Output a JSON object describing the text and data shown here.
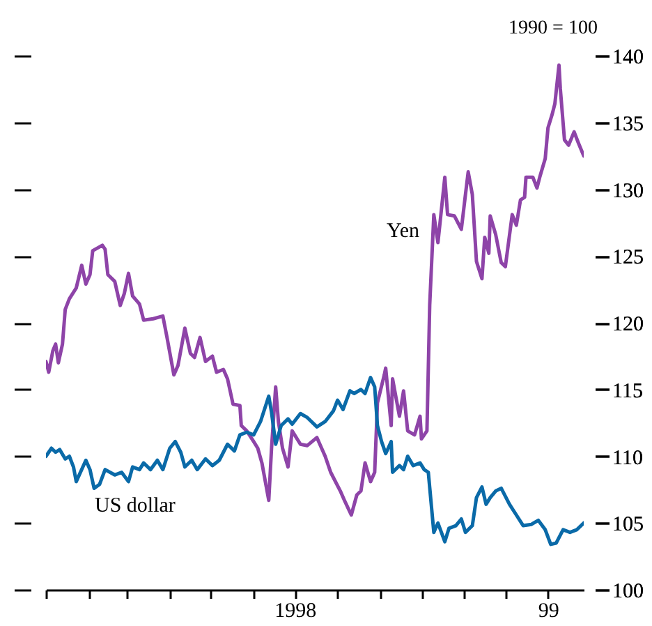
{
  "chart_data": {
    "type": "line",
    "annotations": [
      "1990 = 100"
    ],
    "legend": false,
    "grid": false,
    "xlim": [
      "1998-01-01",
      "1999-01-27"
    ],
    "xticks": [
      {
        "value": "1998-01-01",
        "label": null
      },
      {
        "value": "1998-02-01",
        "label": null
      },
      {
        "value": "1998-03-01",
        "label": null
      },
      {
        "value": "1998-04-01",
        "label": null
      },
      {
        "value": "1998-05-01",
        "label": null
      },
      {
        "value": "1998-06-01",
        "label": null
      },
      {
        "value": "1998-07-01",
        "label": "1998"
      },
      {
        "value": "1998-08-01",
        "label": null
      },
      {
        "value": "1998-09-01",
        "label": null
      },
      {
        "value": "1998-10-01",
        "label": null
      },
      {
        "value": "1998-11-01",
        "label": null
      },
      {
        "value": "1998-12-01",
        "label": null
      },
      {
        "value": "1999-01-01",
        "label": "99"
      }
    ],
    "y2lim": [
      100,
      140
    ],
    "y2ticks": [
      100,
      105,
      110,
      115,
      120,
      125,
      130,
      135,
      140
    ],
    "series": [
      {
        "name": "Yen",
        "color": "#8e44a8",
        "axis": "y2",
        "x": [
          "1998-01-01",
          "1998-01-03",
          "1998-01-06",
          "1998-01-08",
          "1998-01-10",
          "1998-01-13",
          "1998-01-15",
          "1998-01-18",
          "1998-01-23",
          "1998-01-27",
          "1998-01-30",
          "1998-02-02",
          "1998-02-04",
          "1998-02-11",
          "1998-02-13",
          "1998-02-15",
          "1998-02-20",
          "1998-02-24",
          "1998-02-27",
          "1998-03-02",
          "1998-03-05",
          "1998-03-10",
          "1998-03-13",
          "1998-03-20",
          "1998-03-27",
          "1998-03-30",
          "1998-04-04",
          "1998-04-07",
          "1998-04-12",
          "1998-04-16",
          "1998-04-19",
          "1998-04-23",
          "1998-04-27",
          "1998-05-02",
          "1998-05-05",
          "1998-05-10",
          "1998-05-13",
          "1998-05-17",
          "1998-05-22",
          "1998-05-23",
          "1998-05-27",
          "1998-06-01",
          "1998-06-04",
          "1998-06-07",
          "1998-06-12",
          "1998-06-14",
          "1998-06-17",
          "1998-06-19",
          "1998-06-22",
          "1998-06-26",
          "1998-06-29",
          "1998-07-05",
          "1998-07-10",
          "1998-07-17",
          "1998-07-23",
          "1998-07-27",
          "1998-08-03",
          "1998-08-06",
          "1998-08-11",
          "1998-08-15",
          "1998-08-18",
          "1998-08-21",
          "1998-08-25",
          "1998-08-28",
          "1998-08-30",
          "1998-09-04",
          "1998-09-05",
          "1998-09-09",
          "1998-09-10",
          "1998-09-15",
          "1998-09-18",
          "1998-09-21",
          "1998-09-26",
          "1998-09-30",
          "1998-10-01",
          "1998-10-05",
          "1998-10-07",
          "1998-10-10",
          "1998-10-13",
          "1998-10-18",
          "1998-10-20",
          "1998-10-25",
          "1998-10-30",
          "1998-11-02",
          "1998-11-04",
          "1998-11-07",
          "1998-11-10",
          "1998-11-14",
          "1998-11-16",
          "1998-11-19",
          "1998-11-20",
          "1998-11-24",
          "1998-11-28",
          "1998-12-01",
          "1998-12-06",
          "1998-12-09",
          "1998-12-12",
          "1998-12-15",
          "1998-12-16",
          "1998-12-21",
          "1998-12-24",
          "1998-12-26",
          "1998-12-30",
          "1999-01-01",
          "1999-01-04",
          "1999-01-06",
          "1999-01-09",
          "1999-01-10",
          "1999-01-13",
          "1999-01-16",
          "1999-01-20",
          "1999-01-23",
          "1999-01-27"
        ],
        "values": [
          117.1,
          116.3,
          117.9,
          118.4,
          117.0,
          118.4,
          121.0,
          121.8,
          122.6,
          124.3,
          122.9,
          123.6,
          125.4,
          125.8,
          125.5,
          123.6,
          123.1,
          121.3,
          122.2,
          123.7,
          122.0,
          121.4,
          120.2,
          120.3,
          120.5,
          118.9,
          116.1,
          116.8,
          119.6,
          117.7,
          117.4,
          118.9,
          117.1,
          117.5,
          116.3,
          116.5,
          115.8,
          113.9,
          113.8,
          112.3,
          111.9,
          111.1,
          110.6,
          109.5,
          106.7,
          110.6,
          115.2,
          112.6,
          110.6,
          109.2,
          111.9,
          110.9,
          110.8,
          111.4,
          110.0,
          108.8,
          107.4,
          106.7,
          105.6,
          107.1,
          107.4,
          109.5,
          108.1,
          108.8,
          114.0,
          116.1,
          116.6,
          112.3,
          115.8,
          113.0,
          114.9,
          111.9,
          111.6,
          113.0,
          111.3,
          111.9,
          121.3,
          128.1,
          126.0,
          130.9,
          128.1,
          128.0,
          127.0,
          129.6,
          131.3,
          129.6,
          124.6,
          123.3,
          126.4,
          125.2,
          128.0,
          126.6,
          124.5,
          124.2,
          128.1,
          127.3,
          129.2,
          129.4,
          130.9,
          130.9,
          130.1,
          130.9,
          132.3,
          134.6,
          135.6,
          136.4,
          139.3,
          137.5,
          133.7,
          133.3,
          134.3,
          133.5,
          132.5
        ]
      },
      {
        "name": "US dollar",
        "color": "#0a6aa8",
        "axis": "y2",
        "x": [
          "1998-01-01",
          "1998-01-05",
          "1998-01-08",
          "1998-01-11",
          "1998-01-15",
          "1998-01-18",
          "1998-01-21",
          "1998-01-23",
          "1998-01-30",
          "1998-02-02",
          "1998-02-05",
          "1998-02-09",
          "1998-02-13",
          "1998-02-20",
          "1998-02-25",
          "1998-03-02",
          "1998-03-05",
          "1998-03-10",
          "1998-03-13",
          "1998-03-18",
          "1998-03-23",
          "1998-03-27",
          "1998-04-01",
          "1998-04-05",
          "1998-04-09",
          "1998-04-12",
          "1998-04-17",
          "1998-04-21",
          "1998-04-27",
          "1998-05-02",
          "1998-05-07",
          "1998-05-13",
          "1998-05-18",
          "1998-05-22",
          "1998-05-27",
          "1998-06-01",
          "1998-06-06",
          "1998-06-12",
          "1998-06-14",
          "1998-06-17",
          "1998-06-21",
          "1998-06-26",
          "1998-06-29",
          "1998-07-05",
          "1998-07-10",
          "1998-07-17",
          "1998-07-23",
          "1998-07-29",
          "1998-08-01",
          "1998-08-05",
          "1998-08-10",
          "1998-08-13",
          "1998-08-18",
          "1998-08-21",
          "1998-08-25",
          "1998-08-28",
          "1998-08-30",
          "1998-09-02",
          "1998-09-05",
          "1998-09-09",
          "1998-09-10",
          "1998-09-15",
          "1998-09-18",
          "1998-09-21",
          "1998-09-25",
          "1998-09-30",
          "1998-10-03",
          "1998-10-06",
          "1998-10-10",
          "1998-10-13",
          "1998-10-18",
          "1998-10-21",
          "1998-10-26",
          "1998-10-30",
          "1998-11-02",
          "1998-11-07",
          "1998-11-10",
          "1998-11-14",
          "1998-11-17",
          "1998-11-20",
          "1998-11-24",
          "1998-11-28",
          "1998-12-04",
          "1998-12-09",
          "1998-12-14",
          "1998-12-20",
          "1998-12-25",
          "1998-12-30",
          "1999-01-03",
          "1999-01-07",
          "1999-01-12",
          "1999-01-17",
          "1999-01-22",
          "1999-01-27"
        ],
        "values": [
          110.0,
          110.6,
          110.3,
          110.5,
          109.8,
          110.0,
          109.2,
          108.1,
          109.7,
          109.0,
          107.6,
          107.9,
          109.0,
          108.6,
          108.8,
          108.1,
          109.2,
          109.0,
          109.5,
          109.0,
          109.7,
          109.0,
          110.6,
          111.1,
          110.3,
          109.2,
          109.7,
          109.0,
          109.8,
          109.3,
          109.7,
          110.9,
          110.4,
          111.6,
          111.8,
          111.6,
          112.6,
          114.5,
          113.3,
          110.9,
          112.3,
          112.8,
          112.4,
          113.2,
          112.9,
          112.2,
          112.6,
          113.4,
          114.2,
          113.5,
          114.9,
          114.7,
          115.0,
          114.7,
          115.9,
          115.2,
          112.3,
          111.1,
          110.2,
          111.1,
          108.8,
          109.3,
          109.0,
          110.0,
          109.3,
          109.5,
          109.0,
          108.8,
          104.3,
          105.0,
          103.6,
          104.6,
          104.8,
          105.3,
          104.3,
          104.8,
          106.9,
          107.7,
          106.4,
          106.9,
          107.4,
          107.6,
          106.4,
          105.6,
          104.8,
          104.9,
          105.2,
          104.5,
          103.4,
          103.5,
          104.5,
          104.3,
          104.5,
          105.0
        ]
      }
    ]
  }
}
